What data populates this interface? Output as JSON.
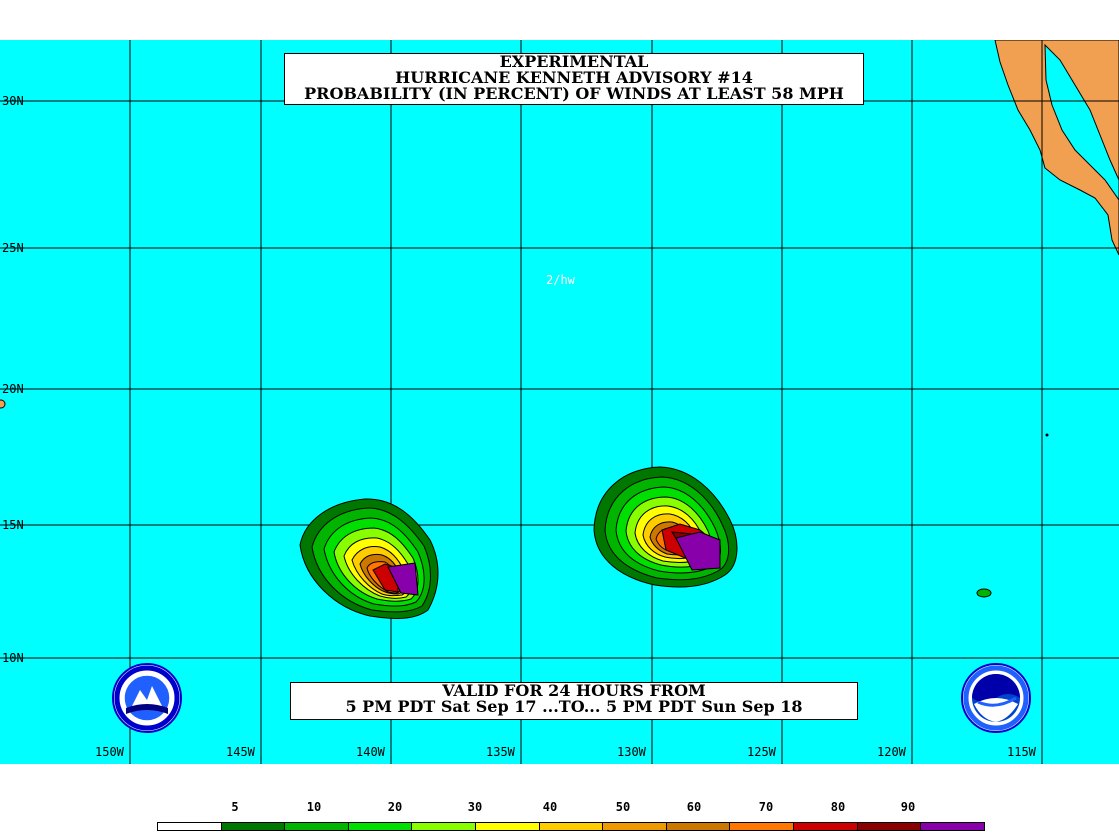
{
  "title": {
    "line1": "EXPERIMENTAL",
    "line2": "HURRICANE KENNETH ADVISORY #14",
    "line3": "PROBABILITY (IN PERCENT) OF WINDS AT LEAST 58 MPH"
  },
  "valid": {
    "line1": "VALID FOR 24 HOURS FROM",
    "line2": "5 PM PDT Sat Sep 17 ...TO... 5 PM PDT Sun Sep 18"
  },
  "initials": "2/hw",
  "lat_labels": [
    "30N",
    "25N",
    "20N",
    "15N",
    "10N"
  ],
  "lon_labels": [
    "150W",
    "145W",
    "140W",
    "135W",
    "130W",
    "125W",
    "120W",
    "115W"
  ],
  "legend": {
    "labels": [
      "5",
      "10",
      "20",
      "30",
      "40",
      "50",
      "60",
      "70",
      "80",
      "90"
    ],
    "colors": [
      "#ffffff",
      "#007800",
      "#00b400",
      "#00e000",
      "#88ff00",
      "#ffff00",
      "#ffcc00",
      "#ee9900",
      "#cc7700",
      "#ff7700",
      "#cc0000",
      "#880000",
      "#8800aa"
    ]
  },
  "colors": {
    "ocean": "#00ffff",
    "land": "#f0a050",
    "grid": "#000000"
  }
}
